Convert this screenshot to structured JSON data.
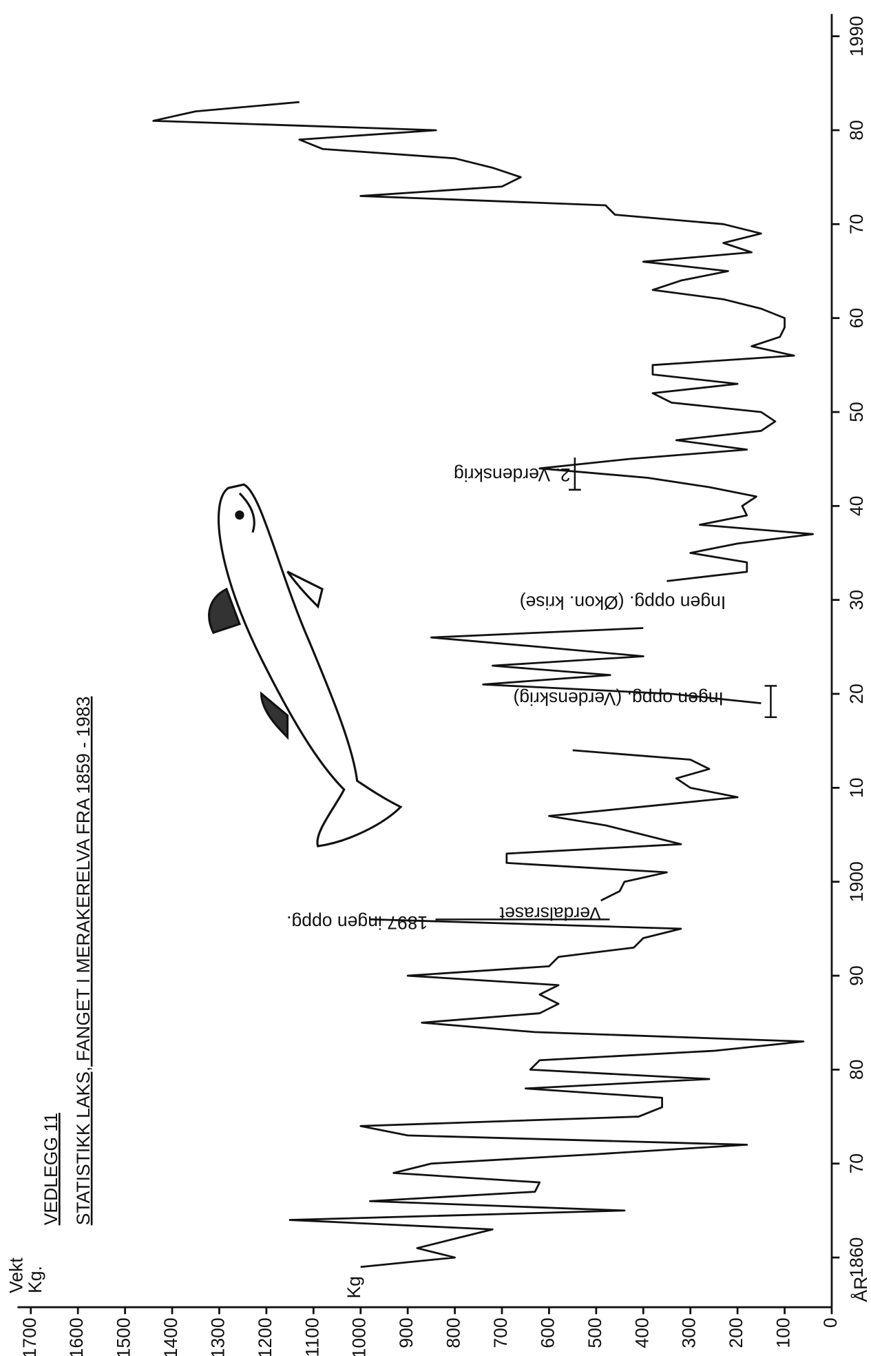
{
  "chart_data": {
    "type": "line",
    "pretitle": "VEDLEGG 11",
    "title": "STATISTIKK LAKS, FANGET I MERAKERELVA FRA 1859 - 1983",
    "y_label": "Vekt",
    "y_label_unit": "Kg.",
    "y_tick_unit": "Kg",
    "x_label": "ÅR",
    "color": "#111111",
    "x": [
      1859,
      1860,
      1861,
      1862,
      1863,
      1864,
      1865,
      1866,
      1867,
      1868,
      1869,
      1870,
      1871,
      1872,
      1873,
      1874,
      1875,
      1876,
      1877,
      1878,
      1879,
      1880,
      1881,
      1882,
      1883,
      1884,
      1885,
      1886,
      1887,
      1888,
      1889,
      1890,
      1891,
      1892,
      1893,
      1894,
      1895,
      1896,
      1897,
      1898,
      1899,
      1900,
      1901,
      1902,
      1903,
      1904,
      1905,
      1906,
      1907,
      1908,
      1909,
      1910,
      1911,
      1912,
      1913,
      1914,
      1915,
      1916,
      1917,
      1918,
      1919,
      1920,
      1921,
      1922,
      1923,
      1924,
      1925,
      1926,
      1927,
      1928,
      1929,
      1930,
      1931,
      1932,
      1933,
      1934,
      1935,
      1936,
      1937,
      1938,
      1939,
      1940,
      1941,
      1942,
      1943,
      1944,
      1945,
      1946,
      1947,
      1948,
      1949,
      1950,
      1951,
      1952,
      1953,
      1954,
      1955,
      1956,
      1957,
      1958,
      1959,
      1960,
      1961,
      1962,
      1963,
      1964,
      1965,
      1966,
      1967,
      1968,
      1969,
      1970,
      1971,
      1972,
      1973,
      1974,
      1975,
      1976,
      1977,
      1978,
      1979,
      1980,
      1981,
      1982,
      1983
    ],
    "values": [
      1000,
      800,
      880,
      800,
      720,
      1150,
      440,
      980,
      630,
      620,
      930,
      850,
      500,
      180,
      900,
      1000,
      410,
      360,
      360,
      650,
      260,
      640,
      620,
      250,
      60,
      630,
      870,
      620,
      580,
      620,
      580,
      900,
      600,
      580,
      420,
      400,
      320,
      980,
      null,
      490,
      450,
      440,
      350,
      690,
      690,
      320,
      400,
      480,
      600,
      400,
      200,
      300,
      330,
      260,
      300,
      550,
      null,
      null,
      null,
      null,
      150,
      340,
      740,
      470,
      720,
      400,
      620,
      850,
      400,
      null,
      null,
      null,
      null,
      350,
      180,
      180,
      300,
      200,
      40,
      280,
      180,
      190,
      160,
      260,
      390,
      620,
      430,
      180,
      330,
      150,
      120,
      150,
      340,
      380,
      200,
      380,
      380,
      80,
      170,
      110,
      100,
      100,
      150,
      230,
      380,
      320,
      220,
      400,
      170,
      230,
      150,
      230,
      460,
      480,
      1000,
      700,
      660,
      720,
      800,
      1080,
      1130,
      840,
      1440,
      1350,
      1130
    ],
    "xlim": [
      1855,
      1995
    ],
    "ylim": [
      0,
      1700
    ],
    "xticks": [
      1860,
      {
        "value": 1870,
        "label": "70"
      },
      {
        "value": 1880,
        "label": "80"
      },
      {
        "value": 1890,
        "label": "90"
      },
      1900,
      {
        "value": 1910,
        "label": "10"
      },
      {
        "value": 1920,
        "label": "20"
      },
      {
        "value": 1930,
        "label": "30"
      },
      {
        "value": 1940,
        "label": "40"
      },
      {
        "value": 1950,
        "label": "50"
      },
      {
        "value": 1960,
        "label": "60"
      },
      {
        "value": 1970,
        "label": "70"
      },
      {
        "value": 1980,
        "label": "80"
      },
      1990
    ],
    "yticks": [
      0,
      100,
      200,
      300,
      400,
      500,
      600,
      700,
      800,
      900,
      1000,
      1100,
      1200,
      1300,
      1400,
      1500,
      1600,
      1700
    ],
    "annotations": [
      "Verdalsraset",
      "1897 ingen oppg.",
      "Ingen oppg. (Verdenskrig)",
      "Ingen oppg. (Økon. krise)",
      "2. Verdenskrig"
    ]
  }
}
